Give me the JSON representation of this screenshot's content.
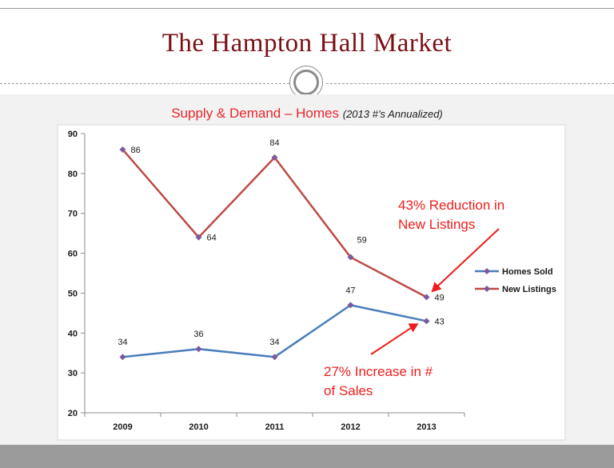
{
  "slide_title": "The Hampton Hall Market",
  "chart_title": "Supply & Demand – Homes",
  "chart_subtitle": "(2013 #’s Annualized)",
  "chart_data": {
    "type": "line",
    "categories": [
      "2009",
      "2010",
      "2011",
      "2012",
      "2013"
    ],
    "series": [
      {
        "name": "Homes Sold",
        "values": [
          34,
          36,
          34,
          47,
          43
        ],
        "color": "#4a7ebb"
      },
      {
        "name": "New Listings",
        "values": [
          86,
          64,
          84,
          59,
          49
        ],
        "color": "#be4b48"
      }
    ],
    "ylim": [
      20,
      90
    ],
    "yticks": [
      20,
      30,
      40,
      50,
      60,
      70,
      80,
      90
    ],
    "marker_color": "#7a5a9e",
    "grid": false,
    "legend_position": "right",
    "annotations": [
      {
        "lines": [
          "43% Reduction in",
          "New Listings"
        ],
        "target_series": "New Listings",
        "target_category": "2013",
        "color": "#ee1c1c"
      },
      {
        "lines": [
          "27% Increase in #",
          "of Sales"
        ],
        "target_series": "Homes Sold",
        "target_category": "2013",
        "color": "#ee1c1c"
      }
    ]
  }
}
